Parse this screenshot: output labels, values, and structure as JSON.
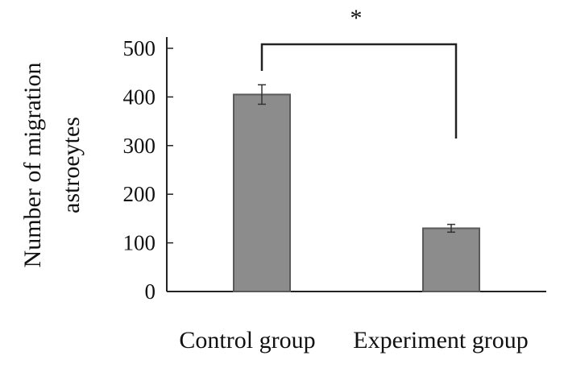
{
  "chart_data": {
    "type": "bar",
    "categories": [
      "Control group",
      "Experiment group"
    ],
    "values": [
      405,
      130
    ],
    "errors": [
      20,
      8
    ],
    "title": "",
    "xlabel": "",
    "ylabel": [
      "Number of migration",
      "astroeytes"
    ],
    "ylim": [
      0,
      500
    ],
    "yticks": [
      0,
      100,
      200,
      300,
      400,
      500
    ],
    "ytick_labels": [
      "0",
      "100",
      "200",
      "300",
      "400",
      "500"
    ],
    "significance": {
      "between": [
        "Control group",
        "Experiment group"
      ],
      "label": "*"
    },
    "colors": {
      "bar_fill": "#8c8c8c",
      "bar_edge": "#5a5a5a",
      "axis": "#222222"
    }
  }
}
